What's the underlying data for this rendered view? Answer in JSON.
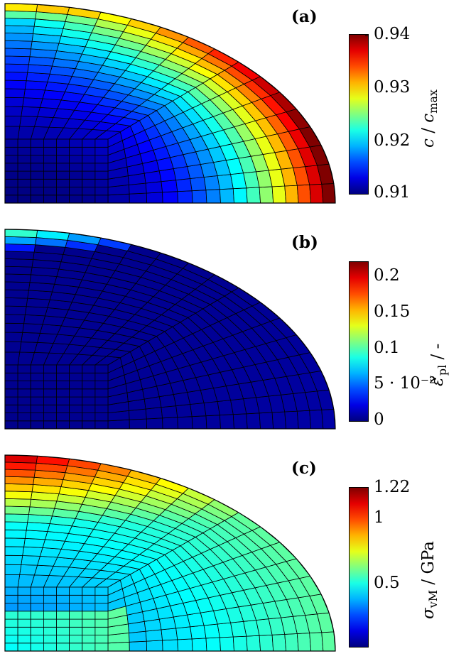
{
  "panels": [
    {
      "tag": "(a)",
      "field": "c",
      "colorbar": {
        "label_symbol": "c",
        "label_sep": " / ",
        "label_unit_symbol": "c",
        "label_unit_sub": "max",
        "ticks": [
          "0.94",
          "0.93",
          "0.92",
          "0.91"
        ]
      }
    },
    {
      "tag": "(b)",
      "field": "eps",
      "colorbar": {
        "label_symbol": "ε",
        "label_sup": "v",
        "label_sub": "pl",
        "label_sep": " / -",
        "ticks": [
          "0.2",
          "0.15",
          "0.1",
          "5 · 10⁻²",
          "0"
        ]
      }
    },
    {
      "tag": "(c)",
      "field": "svm",
      "colorbar": {
        "label_symbol": "σ",
        "label_sub": "vM",
        "label_sep": " / GPa",
        "ticks": [
          "1.22",
          "1",
          "0.5"
        ]
      }
    }
  ],
  "colormap": "jet",
  "colors": {
    "mesh_line": "#000000",
    "background": "#ffffff"
  }
}
